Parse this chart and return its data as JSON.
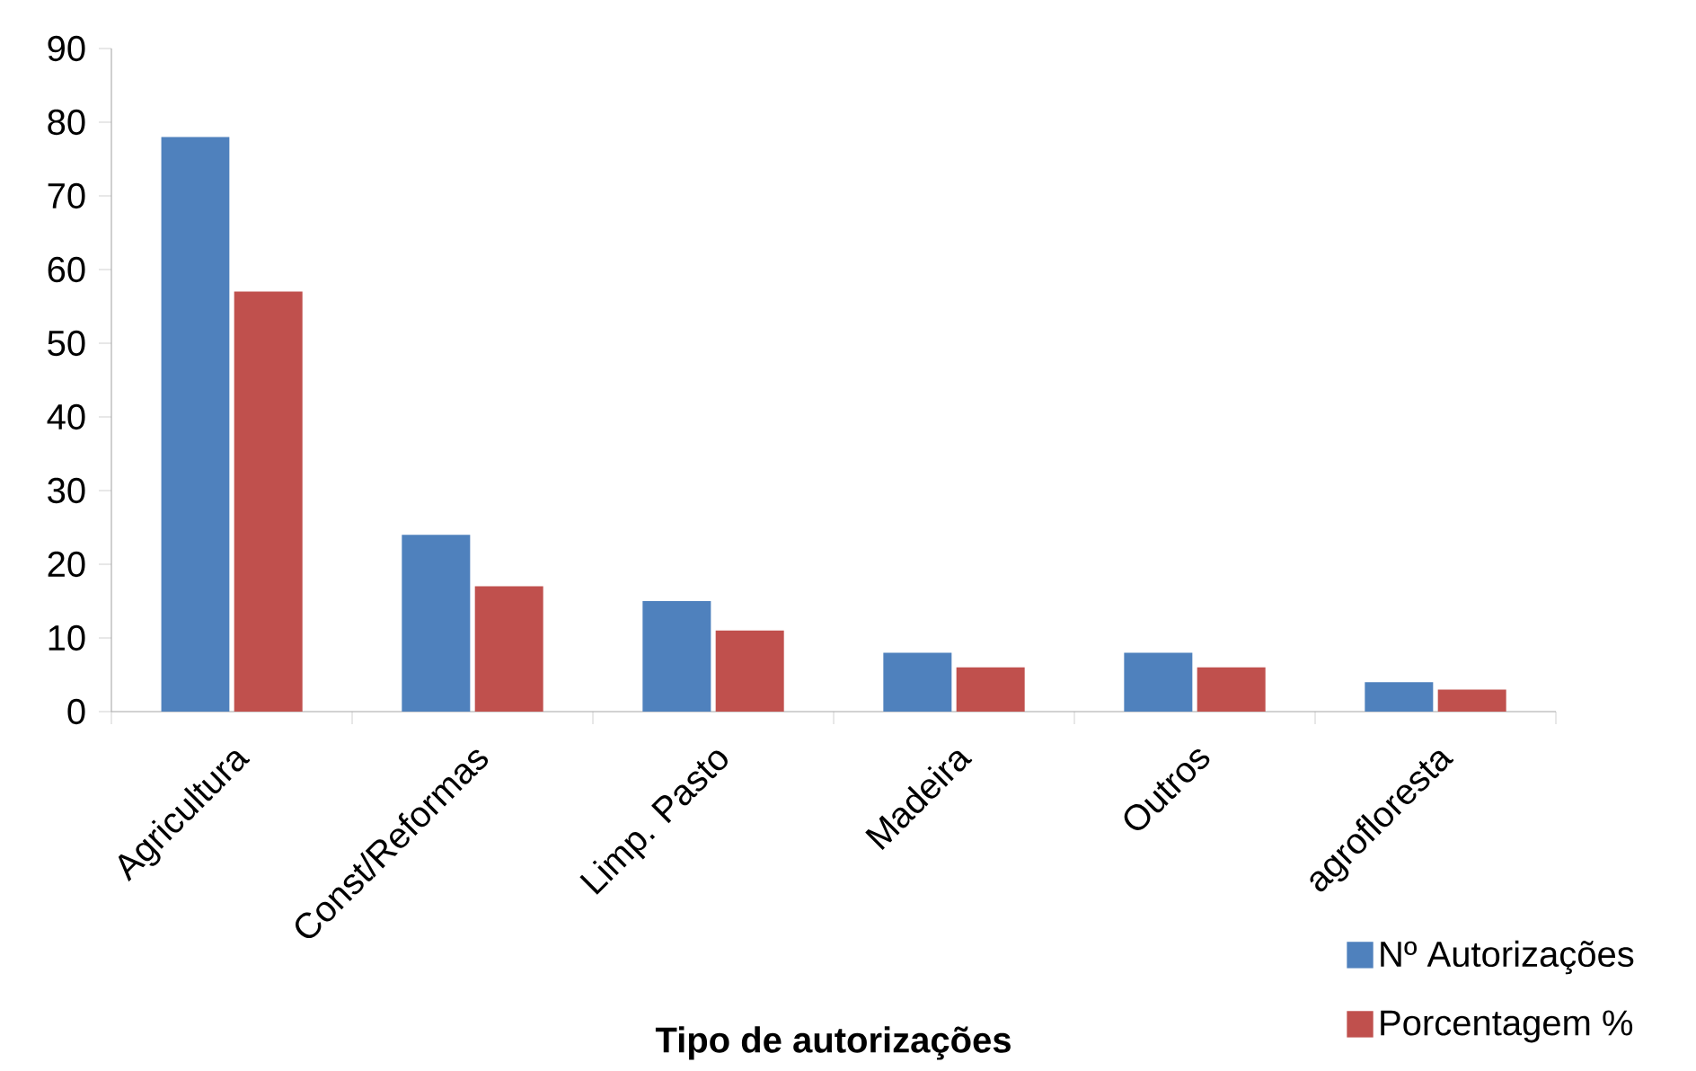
{
  "chart_data": {
    "type": "bar",
    "xlabel": "**Tipo de autorizações**",
    "categories": [
      "Agricultura",
      "Const/Reformas",
      "Limp.  Pasto",
      "Madeira",
      "Outros",
      "agrofloresta"
    ],
    "series": [
      {
        "name": "Nº Autorizações",
        "color": "#4f81bd",
        "values": [
          78,
          24,
          15,
          8,
          8,
          4
        ]
      },
      {
        "name": "Porcentagem %",
        "color": "#c0504d",
        "values": [
          57,
          17,
          11,
          6,
          6,
          3
        ]
      }
    ],
    "ylim": [
      0,
      90
    ],
    "yticks": [
      0,
      10,
      20,
      30,
      40,
      50,
      60,
      70,
      80,
      90
    ],
    "legend": "bottom right"
  }
}
